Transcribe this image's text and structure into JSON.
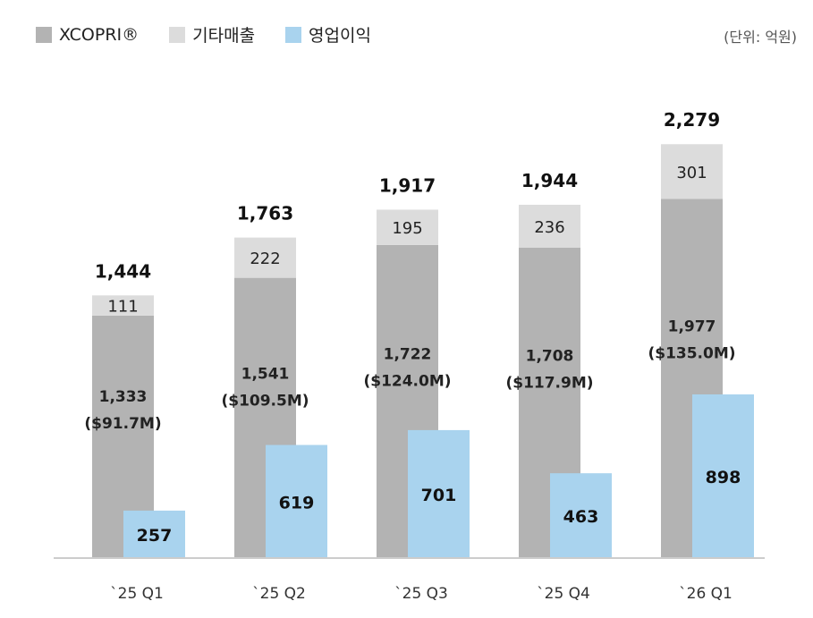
{
  "unit_label": "(단위: 억원)",
  "legend": [
    {
      "label": "XCOPRI®",
      "color": "#b3b3b3"
    },
    {
      "label": "기타매출",
      "color": "#dcdcdc"
    },
    {
      "label": "영업이익",
      "color": "#a9d3ee"
    }
  ],
  "chart_data": {
    "type": "bar",
    "categories": [
      "`25 Q1",
      "`25 Q2",
      "`25 Q3",
      "`25 Q4",
      "`26 Q1"
    ],
    "series": [
      {
        "name": "XCOPRI®",
        "values": [
          1333,
          1541,
          1722,
          1708,
          1977
        ],
        "usd_labels": [
          "($91.7M)",
          "($109.5M)",
          "($124.0M)",
          "($117.9M)",
          "($135.0M)"
        ]
      },
      {
        "name": "기타매출",
        "values": [
          111,
          222,
          195,
          236,
          301
        ]
      },
      {
        "name": "영업이익",
        "values": [
          257,
          619,
          701,
          463,
          898
        ]
      }
    ],
    "totals": [
      1444,
      1763,
      1917,
      1944,
      2279
    ],
    "colors": {
      "xcopri": "#b3b3b3",
      "other": "#dcdcdc",
      "op": "#a9d3ee",
      "axis": "#bbbbbb"
    }
  }
}
